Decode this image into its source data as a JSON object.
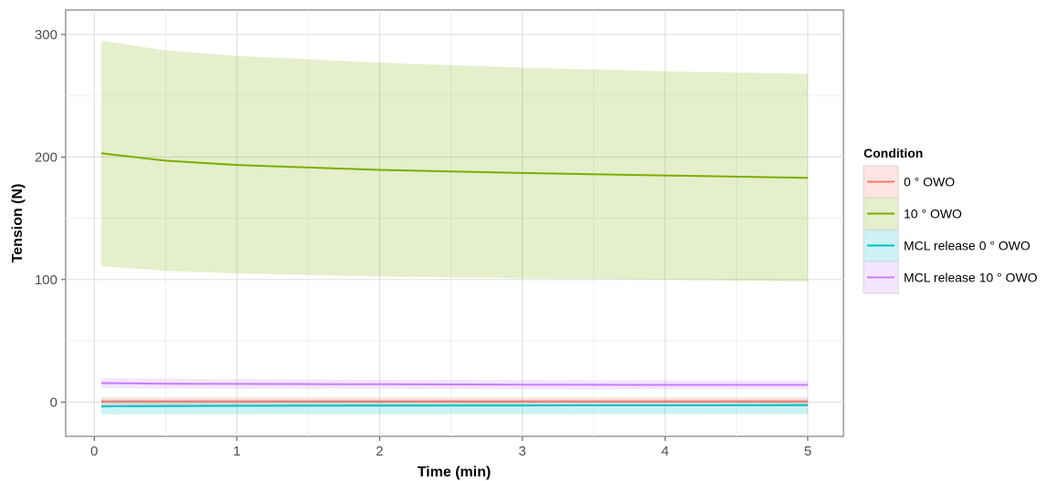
{
  "chart_data": {
    "type": "line",
    "title": "",
    "xlabel": "Time (min)",
    "ylabel": "Tension (N)",
    "xlim": [
      -0.2,
      5.25
    ],
    "ylim": [
      -28,
      320
    ],
    "x_ticks": [
      0,
      1,
      2,
      3,
      4,
      5
    ],
    "y_ticks": [
      0,
      100,
      200,
      300
    ],
    "grid": true,
    "legend_position": "right",
    "legend_title": "Condition",
    "series": [
      {
        "name": "0 ° OWO",
        "color": "#F8766D",
        "x": [
          0.05,
          0.5,
          1,
          2,
          3,
          4,
          5
        ],
        "y": [
          0.5,
          0.5,
          0.5,
          0.5,
          0.5,
          0.5,
          0.5
        ],
        "lower": [
          -3,
          -3,
          -3,
          -3,
          -3,
          -3,
          -3
        ],
        "upper": [
          4,
          4,
          4,
          4,
          4,
          4,
          4
        ]
      },
      {
        "name": "10 ° OWO",
        "color": "#7CAE00",
        "x": [
          0.05,
          0.5,
          1,
          2,
          3,
          4,
          5
        ],
        "y": [
          203,
          197,
          193.5,
          189.5,
          187,
          185,
          183
        ],
        "lower": [
          111,
          107,
          105,
          102.5,
          101,
          100,
          98.5
        ],
        "upper": [
          295,
          287,
          282.5,
          277,
          273,
          270,
          268
        ]
      },
      {
        "name": "MCL release 0 ° OWO",
        "color": "#00BFC4",
        "x": [
          0.05,
          0.5,
          1,
          2,
          3,
          4,
          5
        ],
        "y": [
          -3.5,
          -3.3,
          -3.1,
          -2.9,
          -2.8,
          -2.7,
          -2.6
        ],
        "lower": [
          -10,
          -10,
          -10,
          -10,
          -10,
          -10,
          -10
        ],
        "upper": [
          2,
          2,
          2,
          2,
          2,
          2,
          2
        ]
      },
      {
        "name": "MCL release 10 ° OWO",
        "color": "#C77CFF",
        "x": [
          0.05,
          0.5,
          1,
          2,
          3,
          4,
          5
        ],
        "y": [
          15.5,
          15,
          14.8,
          14.5,
          14.2,
          14,
          14
        ],
        "lower": [
          11.5,
          11,
          11,
          10.8,
          10.5,
          10.5,
          10.5
        ],
        "upper": [
          19.5,
          19,
          18.6,
          18.2,
          18,
          17.5,
          17.5
        ]
      }
    ]
  }
}
